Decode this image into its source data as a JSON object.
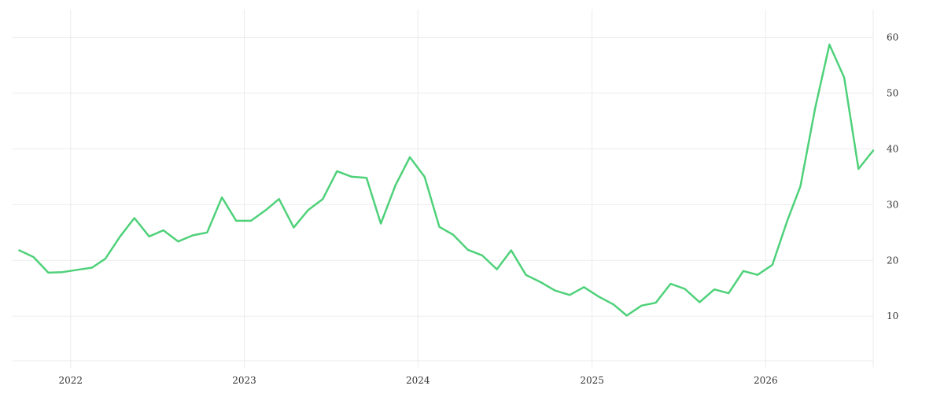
{
  "chart_data": {
    "type": "line",
    "title": "",
    "xlabel": "",
    "ylabel": "",
    "x_ticks": [
      "2022",
      "2023",
      "2024",
      "2025",
      "2026"
    ],
    "y_ticks": [
      10,
      20,
      30,
      40,
      50,
      60
    ],
    "xlim": [
      "2021-09-01",
      "2026-08-15"
    ],
    "ylim": [
      2,
      65
    ],
    "y_axis_side": "right",
    "grid": true,
    "legend": "none",
    "series": [
      {
        "color": "#4fd17a",
        "points": [
          [
            "2021-09-15",
            21.8
          ],
          [
            "2021-10-15",
            20.6
          ],
          [
            "2021-11-15",
            17.8
          ],
          [
            "2021-12-15",
            17.9
          ],
          [
            "2022-01-15",
            18.3
          ],
          [
            "2022-02-15",
            18.7
          ],
          [
            "2022-03-15",
            20.3
          ],
          [
            "2022-04-15",
            24.3
          ],
          [
            "2022-05-15",
            27.6
          ],
          [
            "2022-06-15",
            24.3
          ],
          [
            "2022-07-15",
            25.4
          ],
          [
            "2022-08-15",
            23.4
          ],
          [
            "2022-09-15",
            24.5
          ],
          [
            "2022-10-15",
            25.0
          ],
          [
            "2022-11-15",
            31.3
          ],
          [
            "2022-12-15",
            27.1
          ],
          [
            "2023-01-15",
            27.1
          ],
          [
            "2023-02-15",
            29.0
          ],
          [
            "2023-03-15",
            31.0
          ],
          [
            "2023-04-15",
            25.9
          ],
          [
            "2023-05-15",
            29.0
          ],
          [
            "2023-06-15",
            31.0
          ],
          [
            "2023-07-15",
            36.0
          ],
          [
            "2023-08-15",
            35.0
          ],
          [
            "2023-09-15",
            34.8
          ],
          [
            "2023-10-15",
            26.6
          ],
          [
            "2023-11-15",
            33.5
          ],
          [
            "2023-12-15",
            38.5
          ],
          [
            "2024-01-15",
            35.0
          ],
          [
            "2024-02-15",
            26.0
          ],
          [
            "2024-03-15",
            24.6
          ],
          [
            "2024-04-15",
            21.9
          ],
          [
            "2024-05-15",
            20.9
          ],
          [
            "2024-06-15",
            18.4
          ],
          [
            "2024-07-15",
            21.8
          ],
          [
            "2024-08-15",
            17.4
          ],
          [
            "2024-09-15",
            16.1
          ],
          [
            "2024-10-15",
            14.6
          ],
          [
            "2024-11-15",
            13.8
          ],
          [
            "2024-12-15",
            15.2
          ],
          [
            "2025-01-15",
            13.5
          ],
          [
            "2025-02-15",
            12.1
          ],
          [
            "2025-03-15",
            10.1
          ],
          [
            "2025-04-15",
            11.9
          ],
          [
            "2025-05-15",
            12.4
          ],
          [
            "2025-06-15",
            15.8
          ],
          [
            "2025-07-15",
            14.9
          ],
          [
            "2025-08-15",
            12.5
          ],
          [
            "2025-09-15",
            14.8
          ],
          [
            "2025-10-15",
            14.1
          ],
          [
            "2025-11-15",
            18.1
          ],
          [
            "2025-12-15",
            17.4
          ],
          [
            "2026-01-15",
            19.2
          ],
          [
            "2026-02-15",
            27.0
          ],
          [
            "2026-03-15",
            33.3
          ],
          [
            "2026-04-15",
            47.3
          ],
          [
            "2026-05-15",
            58.7
          ],
          [
            "2026-06-15",
            52.8
          ],
          [
            "2026-07-15",
            36.4
          ],
          [
            "2026-08-15",
            39.7
          ]
        ]
      }
    ]
  }
}
